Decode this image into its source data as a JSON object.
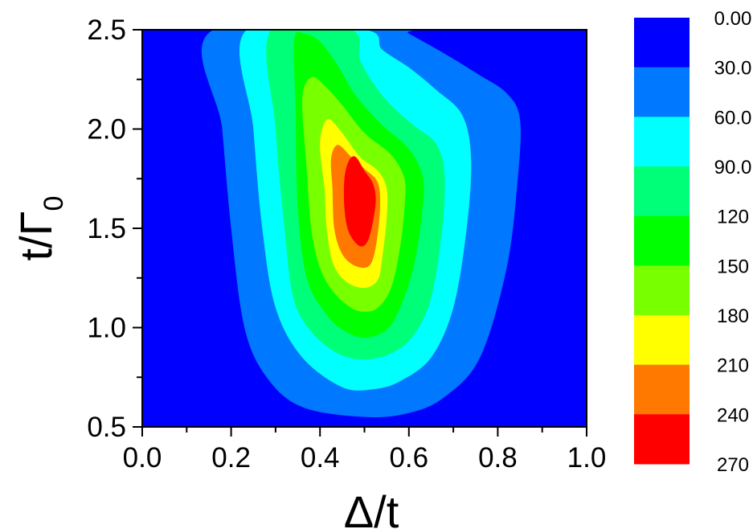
{
  "chart_data": {
    "type": "heatmap",
    "subtype": "filled-contour",
    "title": "",
    "xlabel": "Δ/t",
    "ylabel": {
      "main": "t/Γ",
      "subscript": "0"
    },
    "xlim": [
      0.0,
      1.0
    ],
    "ylim": [
      0.5,
      2.5
    ],
    "x_ticks": [
      "0.0",
      "0.2",
      "0.4",
      "0.6",
      "0.8",
      "1.0"
    ],
    "y_ticks": [
      "0.5",
      "1.0",
      "1.5",
      "2.0",
      "2.5"
    ],
    "colorbar": {
      "placement": "right",
      "labels": [
        "0.00",
        "30.0",
        "60.0",
        "90.0",
        "120",
        "150",
        "180",
        "210",
        "240",
        "270"
      ],
      "colors": [
        "#0000ff",
        "#0078ff",
        "#00ffff",
        "#00ff78",
        "#00ff00",
        "#78ff00",
        "#ffff00",
        "#ff7800",
        "#ff0000"
      ]
    },
    "peak": {
      "x": 0.5,
      "y": 1.65,
      "value_range": [
        240,
        270
      ]
    },
    "contours": [
      {
        "level": 30,
        "points": [
          [
            0.16,
            2.5
          ],
          [
            0.18,
            2.0
          ],
          [
            0.2,
            1.5
          ],
          [
            0.23,
            1.0
          ],
          [
            0.28,
            0.75
          ],
          [
            0.36,
            0.6
          ],
          [
            0.5,
            0.55
          ],
          [
            0.6,
            0.57
          ],
          [
            0.68,
            0.65
          ],
          [
            0.76,
            0.85
          ],
          [
            0.82,
            1.3
          ],
          [
            0.845,
            1.75
          ],
          [
            0.85,
            2.05
          ],
          [
            0.82,
            2.18
          ],
          [
            0.76,
            2.27
          ],
          [
            0.68,
            2.38
          ],
          [
            0.6,
            2.48
          ],
          [
            0.58,
            2.5
          ]
        ]
      },
      {
        "level": 60,
        "points": [
          [
            0.235,
            2.5
          ],
          [
            0.25,
            2.0
          ],
          [
            0.27,
            1.5
          ],
          [
            0.3,
            1.1
          ],
          [
            0.36,
            0.85
          ],
          [
            0.45,
            0.7
          ],
          [
            0.52,
            0.69
          ],
          [
            0.58,
            0.73
          ],
          [
            0.65,
            0.85
          ],
          [
            0.7,
            1.1
          ],
          [
            0.73,
            1.5
          ],
          [
            0.74,
            1.85
          ],
          [
            0.72,
            2.07
          ],
          [
            0.66,
            2.2
          ],
          [
            0.6,
            2.31
          ],
          [
            0.54,
            2.4
          ],
          [
            0.5,
            2.5
          ]
        ]
      },
      {
        "level": 90,
        "points": [
          [
            0.29,
            2.5
          ],
          [
            0.3,
            2.0
          ],
          [
            0.32,
            1.5
          ],
          [
            0.34,
            1.15
          ],
          [
            0.38,
            0.98
          ],
          [
            0.44,
            0.87
          ],
          [
            0.5,
            0.84
          ],
          [
            0.56,
            0.87
          ],
          [
            0.61,
            0.96
          ],
          [
            0.65,
            1.15
          ],
          [
            0.675,
            1.5
          ],
          [
            0.68,
            1.78
          ],
          [
            0.66,
            1.93
          ],
          [
            0.61,
            2.02
          ],
          [
            0.56,
            2.12
          ],
          [
            0.52,
            2.23
          ],
          [
            0.49,
            2.35
          ],
          [
            0.47,
            2.5
          ]
        ]
      },
      {
        "level": 120,
        "points": [
          [
            0.342,
            2.45
          ],
          [
            0.345,
            2.1
          ],
          [
            0.35,
            1.6
          ],
          [
            0.37,
            1.25
          ],
          [
            0.41,
            1.08
          ],
          [
            0.45,
            0.99
          ],
          [
            0.5,
            0.95
          ],
          [
            0.55,
            0.99
          ],
          [
            0.58,
            1.1
          ],
          [
            0.61,
            1.3
          ],
          [
            0.628,
            1.55
          ],
          [
            0.632,
            1.75
          ],
          [
            0.6,
            1.9
          ],
          [
            0.54,
            2.02
          ],
          [
            0.48,
            2.17
          ],
          [
            0.44,
            2.32
          ],
          [
            0.4,
            2.44
          ],
          [
            0.365,
            2.48
          ]
        ]
      },
      {
        "level": 150,
        "points": [
          [
            0.36,
            2.15
          ],
          [
            0.37,
            1.8
          ],
          [
            0.38,
            1.5
          ],
          [
            0.4,
            1.3
          ],
          [
            0.43,
            1.18
          ],
          [
            0.47,
            1.1
          ],
          [
            0.5,
            1.08
          ],
          [
            0.53,
            1.1
          ],
          [
            0.56,
            1.2
          ],
          [
            0.58,
            1.4
          ],
          [
            0.59,
            1.6
          ],
          [
            0.59,
            1.75
          ],
          [
            0.56,
            1.87
          ],
          [
            0.5,
            1.98
          ],
          [
            0.45,
            2.12
          ],
          [
            0.41,
            2.22
          ],
          [
            0.38,
            2.26
          ]
        ]
      },
      {
        "level": 180,
        "points": [
          [
            0.4,
            1.9
          ],
          [
            0.41,
            1.7
          ],
          [
            0.415,
            1.5
          ],
          [
            0.43,
            1.32
          ],
          [
            0.46,
            1.23
          ],
          [
            0.5,
            1.2
          ],
          [
            0.53,
            1.24
          ],
          [
            0.54,
            1.35
          ],
          [
            0.55,
            1.55
          ],
          [
            0.55,
            1.7
          ],
          [
            0.53,
            1.79
          ],
          [
            0.49,
            1.86
          ],
          [
            0.45,
            1.98
          ],
          [
            0.42,
            2.05
          ],
          [
            0.405,
            2.0
          ]
        ]
      },
      {
        "level": 210,
        "points": [
          [
            0.425,
            1.85
          ],
          [
            0.428,
            1.7
          ],
          [
            0.432,
            1.5
          ],
          [
            0.45,
            1.37
          ],
          [
            0.48,
            1.31
          ],
          [
            0.51,
            1.31
          ],
          [
            0.525,
            1.4
          ],
          [
            0.535,
            1.6
          ],
          [
            0.53,
            1.73
          ],
          [
            0.5,
            1.8
          ],
          [
            0.47,
            1.86
          ],
          [
            0.44,
            1.92
          ]
        ]
      },
      {
        "level": 240,
        "points": [
          [
            0.455,
            1.75
          ],
          [
            0.455,
            1.6
          ],
          [
            0.465,
            1.48
          ],
          [
            0.49,
            1.41
          ],
          [
            0.51,
            1.45
          ],
          [
            0.525,
            1.62
          ],
          [
            0.52,
            1.72
          ],
          [
            0.5,
            1.79
          ],
          [
            0.48,
            1.86
          ],
          [
            0.465,
            1.84
          ]
        ]
      }
    ]
  }
}
